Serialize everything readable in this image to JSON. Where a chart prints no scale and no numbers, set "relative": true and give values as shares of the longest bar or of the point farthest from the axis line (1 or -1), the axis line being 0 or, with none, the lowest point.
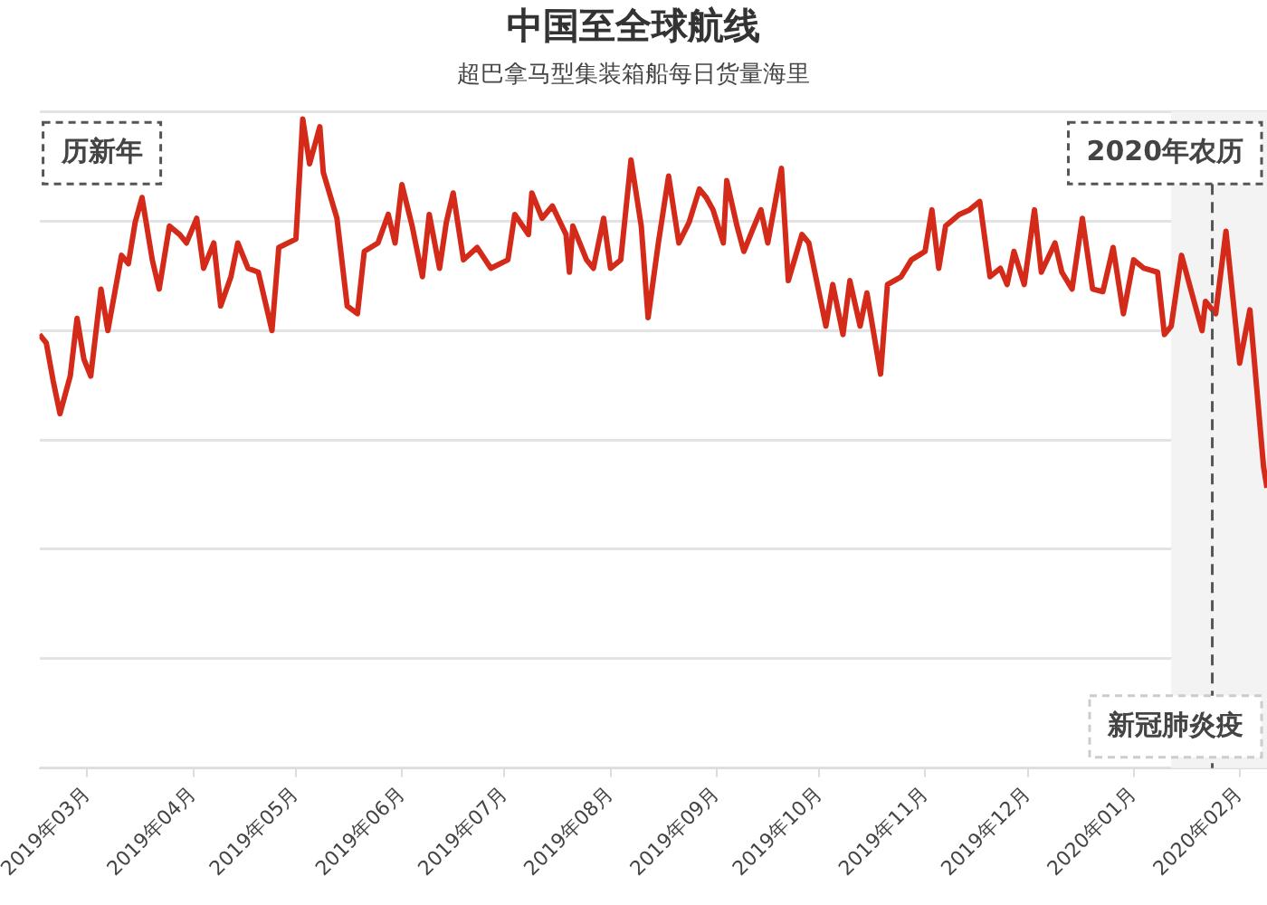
{
  "chart_data": {
    "type": "line",
    "title": "中国至全球航线",
    "subtitle": "超巴拿马型集装箱船每日货量海里",
    "relative": true,
    "grid": "y",
    "tick_labels": "x",
    "legend": false,
    "marker": "none",
    "line_style": "solid",
    "xlim": [
      "2019-02-15",
      "2020-02-09"
    ],
    "xticks": [
      {
        "value": "2019-03-01",
        "label": "2019年03月"
      },
      {
        "value": "2019-04-01",
        "label": "2019年04月"
      },
      {
        "value": "2019-05-01",
        "label": "2019年05月"
      },
      {
        "value": "2019-06-01",
        "label": "2019年06月"
      },
      {
        "value": "2019-07-01",
        "label": "2019年07月"
      },
      {
        "value": "2019-08-01",
        "label": "2019年08月"
      },
      {
        "value": "2019-09-01",
        "label": "2019年09月"
      },
      {
        "value": "2019-10-01",
        "label": "2019年10月"
      },
      {
        "value": "2019-11-01",
        "label": "2019年11月"
      },
      {
        "value": "2019-12-01",
        "label": "2019年12月"
      },
      {
        "value": "2020-01-01",
        "label": "2020年01月"
      },
      {
        "value": "2020-02-01",
        "label": "2020年02月"
      }
    ],
    "ref_lines": [
      {
        "axis": "x",
        "value": "2020-01-24",
        "label": "2020年农历",
        "color": "#555555",
        "line_style": "dashed"
      }
    ],
    "bands": [
      {
        "axis": "x",
        "from": "2020-01-12",
        "to": "2020-02-09",
        "label": "新冠肺炎疫",
        "color": "#f3f3f3"
      }
    ],
    "annotations": [
      "历新年"
    ],
    "series": [
      {
        "color": "#d42a1a",
        "x": [
          "2019-02-15",
          "2019-02-17",
          "2019-02-19",
          "2019-02-21",
          "2019-02-24",
          "2019-02-26",
          "2019-02-28",
          "2019-03-02",
          "2019-03-05",
          "2019-03-07",
          "2019-03-11",
          "2019-03-13",
          "2019-03-15",
          "2019-03-17",
          "2019-03-20",
          "2019-03-22",
          "2019-03-25",
          "2019-03-28",
          "2019-03-30",
          "2019-04-02",
          "2019-04-04",
          "2019-04-07",
          "2019-04-09",
          "2019-04-12",
          "2019-04-14",
          "2019-04-17",
          "2019-04-20",
          "2019-04-24",
          "2019-04-26",
          "2019-05-01",
          "2019-05-03",
          "2019-05-05",
          "2019-05-08",
          "2019-05-09",
          "2019-05-13",
          "2019-05-16",
          "2019-05-19",
          "2019-05-21",
          "2019-05-25",
          "2019-05-28",
          "2019-05-30",
          "2019-06-01",
          "2019-06-04",
          "2019-06-07",
          "2019-06-09",
          "2019-06-12",
          "2019-06-14",
          "2019-06-16",
          "2019-06-19",
          "2019-06-23",
          "2019-06-27",
          "2019-07-02",
          "2019-07-04",
          "2019-07-08",
          "2019-07-09",
          "2019-07-12",
          "2019-07-15",
          "2019-07-19",
          "2019-07-20",
          "2019-07-21",
          "2019-07-25",
          "2019-07-27",
          "2019-07-30",
          "2019-08-01",
          "2019-08-04",
          "2019-08-07",
          "2019-08-10",
          "2019-08-12",
          "2019-08-15",
          "2019-08-18",
          "2019-08-21",
          "2019-08-24",
          "2019-08-27",
          "2019-08-29",
          "2019-08-31",
          "2019-09-03",
          "2019-09-04",
          "2019-09-07",
          "2019-09-09",
          "2019-09-12",
          "2019-09-14",
          "2019-09-16",
          "2019-09-20",
          "2019-09-22",
          "2019-09-26",
          "2019-09-28",
          "2019-10-03",
          "2019-10-05",
          "2019-10-08",
          "2019-10-10",
          "2019-10-13",
          "2019-10-15",
          "2019-10-19",
          "2019-10-21",
          "2019-10-25",
          "2019-10-28",
          "2019-11-01",
          "2019-11-03",
          "2019-11-05",
          "2019-11-07",
          "2019-11-11",
          "2019-11-14",
          "2019-11-17",
          "2019-11-20",
          "2019-11-23",
          "2019-11-25",
          "2019-11-27",
          "2019-11-30",
          "2019-12-03",
          "2019-12-05",
          "2019-12-09",
          "2019-12-11",
          "2019-12-14",
          "2019-12-17",
          "2019-12-20",
          "2019-12-23",
          "2019-12-26",
          "2019-12-29",
          "2020-01-01",
          "2020-01-04",
          "2020-01-08",
          "2020-01-10",
          "2020-01-12",
          "2020-01-15",
          "2020-01-18",
          "2020-01-21",
          "2020-01-22",
          "2020-01-25",
          "2020-01-28",
          "2020-02-01",
          "2020-02-04",
          "2020-02-08",
          "2020-02-09"
        ],
        "values": [
          0.668,
          0.655,
          0.597,
          0.546,
          0.604,
          0.693,
          0.63,
          0.604,
          0.738,
          0.674,
          0.79,
          0.777,
          0.841,
          0.879,
          0.783,
          0.738,
          0.835,
          0.822,
          0.809,
          0.847,
          0.77,
          0.809,
          0.712,
          0.757,
          0.809,
          0.77,
          0.764,
          0.674,
          0.802,
          0.815,
          1,
          0.931,
          0.988,
          0.918,
          0.847,
          0.712,
          0.7,
          0.796,
          0.809,
          0.853,
          0.809,
          0.899,
          0.835,
          0.757,
          0.853,
          0.77,
          0.841,
          0.886,
          0.783,
          0.802,
          0.77,
          0.783,
          0.853,
          0.822,
          0.886,
          0.847,
          0.866,
          0.822,
          0.764,
          0.835,
          0.783,
          0.77,
          0.847,
          0.77,
          0.783,
          0.937,
          0.835,
          0.694,
          0.809,
          0.912,
          0.809,
          0.841,
          0.892,
          0.879,
          0.86,
          0.809,
          0.905,
          0.835,
          0.796,
          0.835,
          0.86,
          0.809,
          0.924,
          0.751,
          0.822,
          0.809,
          0.681,
          0.745,
          0.668,
          0.751,
          0.681,
          0.732,
          0.607,
          0.745,
          0.757,
          0.783,
          0.796,
          0.86,
          0.77,
          0.835,
          0.853,
          0.86,
          0.873,
          0.757,
          0.77,
          0.745,
          0.796,
          0.745,
          0.86,
          0.764,
          0.809,
          0.764,
          0.738,
          0.847,
          0.738,
          0.734,
          0.802,
          0.7,
          0.783,
          0.77,
          0.764,
          0.668,
          0.681,
          0.79,
          0.732,
          0.674,
          0.719,
          0.7,
          0.827,
          0.624,
          0.706,
          0.464,
          0.432
        ]
      }
    ]
  }
}
